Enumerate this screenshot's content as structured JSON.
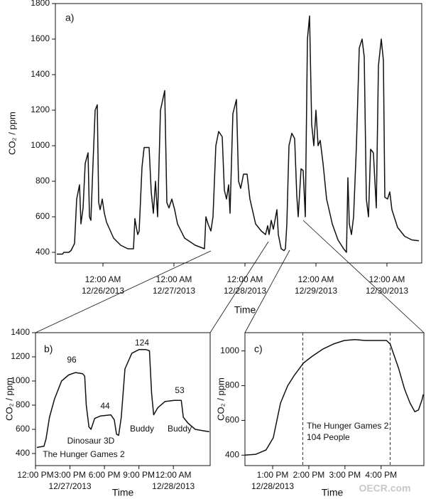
{
  "chart_data": [
    {
      "type": "line",
      "panel_label": "a)",
      "ylabel": "CO₂ / ppm",
      "xlabel": "Time",
      "color": "#111111",
      "xlim": [
        "2013-12-25T07:55",
        "2013-12-30T11:46"
      ],
      "ylim": [
        340,
        1800
      ],
      "yticks": [
        400,
        600,
        800,
        1000,
        1200,
        1400,
        1600,
        1800
      ],
      "xticks": [
        {
          "value": "2013-12-26T00:00",
          "label": "12:00 AM\n12/26/2013"
        },
        {
          "value": "2013-12-27T00:00",
          "label": "12:00 AM\n12/27/2013"
        },
        {
          "value": "2013-12-28T00:00",
          "label": "12:00 AM\n12/28/2013"
        },
        {
          "value": "2013-12-29T00:00",
          "label": "12:00 AM\n12/29/2013"
        },
        {
          "value": "2013-12-30T00:00",
          "label": "12:00 AM\n12/30/2013"
        }
      ],
      "x": [
        "2013-12-25T08:24",
        "2013-12-25T10:19",
        "2013-12-25T10:48",
        "2013-12-25T12:29",
        "2013-12-25T13:12",
        "2013-12-25T14:24",
        "2013-12-25T15:07",
        "2013-12-25T16:05",
        "2013-12-25T16:34",
        "2013-12-25T17:17",
        "2013-12-25T18:00",
        "2013-12-25T18:58",
        "2013-12-25T19:26",
        "2013-12-25T19:55",
        "2013-12-25T20:38",
        "2013-12-25T21:22",
        "2013-12-25T22:05",
        "2013-12-25T22:34",
        "2013-12-25T23:02",
        "2013-12-25T23:46",
        "2013-12-26T00:29",
        "2013-12-26T01:12",
        "2013-12-26T03:36",
        "2013-12-26T06:00",
        "2013-12-26T08:24",
        "2013-12-26T10:19",
        "2013-12-26T10:48",
        "2013-12-26T11:17",
        "2013-12-26T11:46",
        "2013-12-26T12:14",
        "2013-12-26T13:12",
        "2013-12-26T13:55",
        "2013-12-26T15:36",
        "2013-12-26T16:19",
        "2013-12-26T17:02",
        "2013-12-26T17:46",
        "2013-12-26T18:29",
        "2013-12-26T19:26",
        "2013-12-26T20:53",
        "2013-12-26T21:36",
        "2013-12-26T22:19",
        "2013-12-26T23:17",
        "2013-12-27T00:14",
        "2013-12-27T01:12",
        "2013-12-27T03:36",
        "2013-12-27T07:12",
        "2013-12-27T10:19",
        "2013-12-27T10:48",
        "2013-12-27T11:31",
        "2013-12-27T12:29",
        "2013-12-27T13:12",
        "2013-12-27T14:10",
        "2013-12-27T15:07",
        "2013-12-27T16:19",
        "2013-12-27T17:02",
        "2013-12-27T17:46",
        "2013-12-27T18:29",
        "2013-12-27T18:58",
        "2013-12-27T19:55",
        "2013-12-27T21:07",
        "2013-12-27T21:50",
        "2013-12-27T22:34",
        "2013-12-27T23:31",
        "2013-12-28T00:43",
        "2013-12-28T01:41",
        "2013-12-28T03:36",
        "2013-12-28T05:31",
        "2013-12-28T06:58",
        "2013-12-28T07:41",
        "2013-12-28T08:10",
        "2013-12-28T08:53",
        "2013-12-28T09:36",
        "2013-12-28T10:48",
        "2013-12-28T11:17",
        "2013-12-28T12:14",
        "2013-12-28T13:12",
        "2013-12-28T13:41",
        "2013-12-28T14:10",
        "2013-12-28T14:53",
        "2013-12-28T15:50",
        "2013-12-28T16:48",
        "2013-12-28T17:31",
        "2013-12-28T18:00",
        "2013-12-28T18:58",
        "2013-12-28T19:41",
        "2013-12-28T20:24",
        "2013-12-28T21:07",
        "2013-12-28T21:50",
        "2013-12-28T22:34",
        "2013-12-28T23:17",
        "2013-12-29T00:00",
        "2013-12-29T00:43",
        "2013-12-29T01:26",
        "2013-12-29T02:24",
        "2013-12-29T03:36",
        "2013-12-29T05:31",
        "2013-12-29T07:26",
        "2013-12-29T09:22",
        "2013-12-29T10:19",
        "2013-12-29T10:48",
        "2013-12-29T11:17",
        "2013-12-29T12:00",
        "2013-12-29T12:43",
        "2013-12-29T13:41",
        "2013-12-29T14:38",
        "2013-12-29T15:36",
        "2013-12-29T16:19",
        "2013-12-29T17:02",
        "2013-12-29T17:46",
        "2013-12-29T18:29",
        "2013-12-29T19:26",
        "2013-12-29T20:24",
        "2013-12-29T21:07",
        "2013-12-29T22:05",
        "2013-12-29T22:48",
        "2013-12-29T23:17",
        "2013-12-30T00:14",
        "2013-12-30T00:58",
        "2013-12-30T01:41",
        "2013-12-30T03:36",
        "2013-12-30T06:00",
        "2013-12-30T08:24",
        "2013-12-30T10:48"
      ],
      "values": [
        390,
        390,
        400,
        400,
        410,
        450,
        700,
        780,
        560,
        650,
        900,
        960,
        600,
        580,
        900,
        1200,
        1230,
        680,
        640,
        700,
        620,
        570,
        480,
        440,
        420,
        420,
        590,
        540,
        500,
        520,
        880,
        990,
        990,
        740,
        620,
        800,
        600,
        1200,
        1310,
        680,
        650,
        700,
        640,
        560,
        480,
        440,
        420,
        600,
        560,
        520,
        600,
        1000,
        1080,
        1050,
        750,
        700,
        780,
        620,
        1180,
        1260,
        800,
        760,
        840,
        840,
        700,
        560,
        520,
        500,
        550,
        500,
        580,
        530,
        640,
        500,
        420,
        410,
        420,
        560,
        1000,
        1070,
        1040,
        720,
        600,
        870,
        860,
        600,
        1600,
        1730,
        1120,
        1000,
        1200,
        1000,
        1030,
        900,
        700,
        560,
        470,
        420,
        400,
        820,
        560,
        500,
        600,
        1000,
        1550,
        1600,
        1500,
        700,
        600,
        980,
        960,
        650,
        1450,
        1600,
        1480,
        710,
        700,
        740,
        640,
        540,
        490,
        470,
        465
      ]
    },
    {
      "type": "line",
      "panel_label": "b)",
      "ylabel": "CO₂ / ppm",
      "xlabel": "Time",
      "color": "#111111",
      "xlim": [
        "2013-12-27T12:00",
        "2013-12-28T03:12"
      ],
      "ylim": [
        300,
        1400
      ],
      "yticks": [
        400,
        600,
        800,
        1000,
        1200,
        1400
      ],
      "xticks": [
        {
          "value": "2013-12-27T12:00",
          "label": "12:00 PM"
        },
        {
          "value": "2013-12-27T15:00",
          "label": "3:00 PM\n12/27/2013"
        },
        {
          "value": "2013-12-27T18:00",
          "label": "6:00 PM"
        },
        {
          "value": "2013-12-27T21:00",
          "label": "9:00 PM"
        },
        {
          "value": "2013-12-28T00:00",
          "label": "12:00 AM\n12/28/2013"
        }
      ],
      "x": [
        "2013-12-27T12:07",
        "2013-12-27T12:44",
        "2013-12-27T12:55",
        "2013-12-27T13:13",
        "2013-12-27T13:39",
        "2013-12-27T14:16",
        "2013-12-27T14:53",
        "2013-12-27T15:29",
        "2013-12-27T16:06",
        "2013-12-27T16:17",
        "2013-12-27T16:25",
        "2013-12-27T16:39",
        "2013-12-27T16:50",
        "2013-12-27T17:09",
        "2013-12-27T17:38",
        "2013-12-27T18:33",
        "2013-12-27T18:51",
        "2013-12-27T19:03",
        "2013-12-27T19:14",
        "2013-12-27T19:28",
        "2013-12-27T19:47",
        "2013-12-27T20:23",
        "2013-12-27T21:00",
        "2013-12-27T21:37",
        "2013-12-27T21:55",
        "2013-12-27T22:06",
        "2013-12-27T22:17",
        "2013-12-27T22:39",
        "2013-12-27T23:16",
        "2013-12-28T00:04",
        "2013-12-28T00:41",
        "2013-12-28T00:52",
        "2013-12-28T01:17",
        "2013-12-28T01:54",
        "2013-12-28T02:31",
        "2013-12-28T03:07"
      ],
      "values": [
        450,
        460,
        520,
        700,
        850,
        1000,
        1050,
        1070,
        1060,
        1040,
        800,
        620,
        600,
        690,
        710,
        720,
        680,
        560,
        550,
        700,
        1100,
        1230,
        1260,
        1260,
        1250,
        900,
        720,
        780,
        830,
        840,
        840,
        700,
        650,
        600,
        590,
        580
      ],
      "annotations": [
        "96",
        "44",
        "124",
        "53",
        "Dinosaur 3D",
        "Buddy",
        "Buddy",
        "The Hunger Games 2"
      ]
    },
    {
      "type": "line",
      "panel_label": "c)",
      "ylabel": "CO₂ / ppm",
      "xlabel": "Time",
      "color": "#111111",
      "xlim": [
        "2013-12-28T12:14",
        "2013-12-28T17:11"
      ],
      "ylim": [
        340,
        1105
      ],
      "yticks": [
        400,
        600,
        800,
        1000
      ],
      "xticks": [
        {
          "value": "2013-12-28T13:00",
          "label": "1:00 PM\n12/28/2013"
        },
        {
          "value": "2013-12-28T14:00",
          "label": "2:00 PM"
        },
        {
          "value": "2013-12-28T15:00",
          "label": "3:00 PM"
        },
        {
          "value": "2013-12-28T16:00",
          "label": "4:00 PM"
        }
      ],
      "x": [
        "2013-12-28T12:14",
        "2013-12-28T12:32",
        "2013-12-28T12:49",
        "2013-12-28T13:01",
        "2013-12-28T13:07",
        "2013-12-28T13:13",
        "2013-12-28T13:25",
        "2013-12-28T13:36",
        "2013-12-28T13:51",
        "2013-12-28T14:06",
        "2013-12-28T14:23",
        "2013-12-28T14:41",
        "2013-12-28T14:59",
        "2013-12-28T15:16",
        "2013-12-28T15:34",
        "2013-12-28T15:52",
        "2013-12-28T16:09",
        "2013-12-28T16:15",
        "2013-12-28T16:21",
        "2013-12-28T16:29",
        "2013-12-28T16:39",
        "2013-12-28T16:48",
        "2013-12-28T16:56",
        "2013-12-28T17:02",
        "2013-12-28T17:08",
        "2013-12-28T17:10"
      ],
      "values": [
        400,
        405,
        430,
        500,
        600,
        700,
        800,
        860,
        930,
        970,
        1010,
        1040,
        1060,
        1065,
        1060,
        1060,
        1060,
        1040,
        980,
        900,
        780,
        700,
        650,
        660,
        720,
        750
      ],
      "markers": [
        "2013-12-28T13:50",
        "2013-12-28T16:15"
      ],
      "annotations": [
        "The Hunger Games 2",
        "104 People"
      ]
    }
  ],
  "watermark": "OECR.com"
}
